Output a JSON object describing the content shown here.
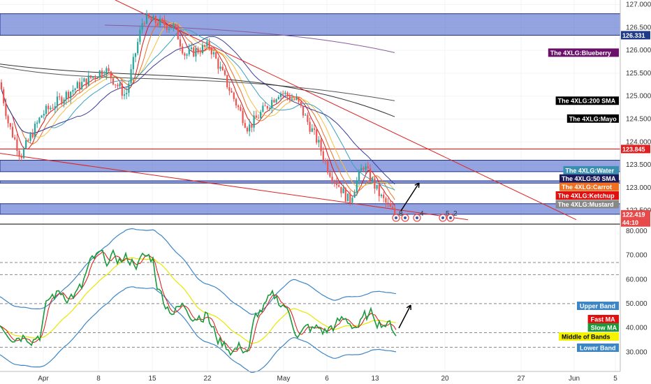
{
  "chart_data": [
    {
      "type": "candlestick",
      "panel": "price",
      "ylim": [
        122.25,
        127.1
      ],
      "y_ticks": [
        "127.000",
        "126.500",
        "126.000",
        "125.500",
        "125.000",
        "124.500",
        "124.000",
        "123.500",
        "123.000",
        "122.500"
      ],
      "x_ticks": [
        "Apr",
        "8",
        "15",
        "22",
        "May",
        "6",
        "13",
        "20",
        "27",
        "Jun",
        "5"
      ],
      "price_labels": [
        {
          "text": "126.331",
          "value": 126.331,
          "color": "#1e3a8a",
          "text_color": "#ffffff"
        },
        {
          "text": "123.845",
          "value": 123.845,
          "color": "#e02020",
          "text_color": "#ffffff"
        },
        {
          "text": "122.419",
          "value": 122.419,
          "color": "#e84a4a",
          "text_color": "#ffffff"
        },
        {
          "text": "44:10",
          "value": 122.24,
          "color": "#e84a4a",
          "text_color": "#ffffff"
        }
      ],
      "indicator_labels": [
        {
          "text": "The 4XLG:Blueberry",
          "value": 125.95,
          "color": "#6a0f6a"
        },
        {
          "text": "The 4XLG:200 SMA",
          "value": 124.9,
          "color": "#000000"
        },
        {
          "text": "The 4XLG:Mayo",
          "value": 124.51,
          "color": "#000000"
        },
        {
          "text": "The 4XLG:Water",
          "value": 123.38,
          "color": "#3a8fb0"
        },
        {
          "text": "The 4XLG:50 SMA",
          "value": 123.2,
          "color": "#1a1a5a"
        },
        {
          "text": "The 4XLG:Carrot",
          "value": 123.02,
          "color": "#f07020"
        },
        {
          "text": "The 4XLG:Ketchup",
          "value": 122.83,
          "color": "#e01010"
        },
        {
          "text": "The 4XLG:Mustard",
          "value": 122.64,
          "color": "#888888"
        }
      ],
      "zones": [
        {
          "from": 126.33,
          "to": 126.8
        },
        {
          "from": 123.35,
          "to": 123.6
        },
        {
          "from": 123.1,
          "to": 123.15
        },
        {
          "from": 122.42,
          "to": 122.65
        }
      ],
      "event_markers": [
        "8",
        "4",
        "5",
        "2"
      ]
    },
    {
      "type": "line",
      "panel": "rsi",
      "ylim": [
        22,
        82
      ],
      "y_ticks": [
        "80.000",
        "70.000",
        "60.000",
        "50.000",
        "40.000",
        "30.000"
      ],
      "legend": [
        {
          "text": "Upper Band",
          "color": "#3d86c6"
        },
        {
          "text": "Fast MA",
          "color": "#e01010"
        },
        {
          "text": "Slow MA",
          "color": "#1a9a3a"
        },
        {
          "text": "Middle of Bands",
          "color": "#f4f400"
        },
        {
          "text": "Lower Band",
          "color": "#3d86c6"
        }
      ],
      "dashed_levels": [
        67,
        62,
        50,
        38,
        32
      ]
    }
  ]
}
